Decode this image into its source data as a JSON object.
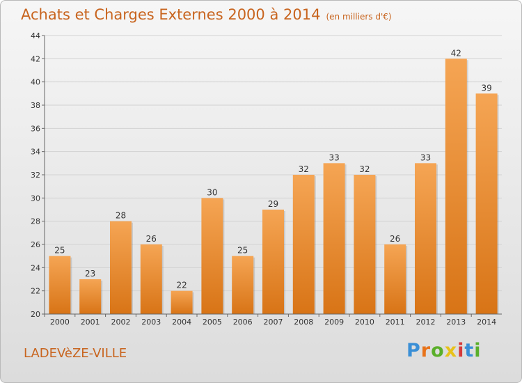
{
  "title": "Achats et Charges Externes 2000 à 2014",
  "subtitle": "(en milliers d'€)",
  "commune": "LADEVèZE-VILLE",
  "brand": "Proxiti",
  "colors": {
    "bar_top": "#f5a554",
    "bar_bottom": "#d87416",
    "title": "#c8641e",
    "logo": [
      "#3a8fd6",
      "#e8731a",
      "#5aaf2a",
      "#e8c21a",
      "#d63a3a",
      "#3a8fd6",
      "#5aaf2a"
    ]
  },
  "chart_data": {
    "type": "bar",
    "title": "Achats et Charges Externes 2000 à 2014",
    "subtitle": "(en milliers d'€)",
    "categories": [
      "2000",
      "2001",
      "2002",
      "2003",
      "2004",
      "2005",
      "2006",
      "2007",
      "2008",
      "2009",
      "2010",
      "2011",
      "2012",
      "2013",
      "2014"
    ],
    "values": [
      25,
      23,
      28,
      26,
      22,
      30,
      25,
      29,
      32,
      33,
      32,
      26,
      33,
      42,
      39
    ],
    "ylim": [
      20,
      44
    ],
    "yticks": [
      20,
      22,
      24,
      26,
      28,
      30,
      32,
      34,
      36,
      38,
      40,
      42,
      44
    ],
    "grid": true,
    "legend": "none"
  }
}
